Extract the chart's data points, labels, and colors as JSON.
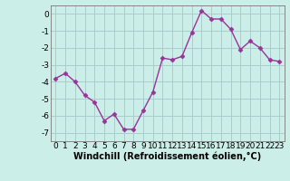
{
  "x": [
    0,
    1,
    2,
    3,
    4,
    5,
    6,
    7,
    8,
    9,
    10,
    11,
    12,
    13,
    14,
    15,
    16,
    17,
    18,
    19,
    20,
    21,
    22,
    23
  ],
  "y": [
    -3.8,
    -3.5,
    -4.0,
    -4.8,
    -5.2,
    -6.3,
    -5.9,
    -6.8,
    -6.8,
    -5.7,
    -4.6,
    -2.6,
    -2.7,
    -2.5,
    -1.1,
    0.2,
    -0.3,
    -0.3,
    -0.9,
    -2.1,
    -1.6,
    -2.0,
    -2.7,
    -2.8
  ],
  "line_color": "#993399",
  "marker": "D",
  "markersize": 2.5,
  "linewidth": 1.0,
  "bg_color": "#cceee8",
  "grid_color": "#aacccc",
  "xlabel": "Windchill (Refroidissement éolien,°C)",
  "xlabel_fontsize": 7,
  "tick_fontsize": 6.5,
  "ylim": [
    -7.5,
    0.5
  ],
  "yticks": [
    0,
    -1,
    -2,
    -3,
    -4,
    -5,
    -6,
    -7
  ],
  "xticks": [
    0,
    1,
    2,
    3,
    4,
    5,
    6,
    7,
    8,
    9,
    10,
    11,
    12,
    13,
    14,
    15,
    16,
    17,
    18,
    19,
    20,
    21,
    22,
    23
  ]
}
